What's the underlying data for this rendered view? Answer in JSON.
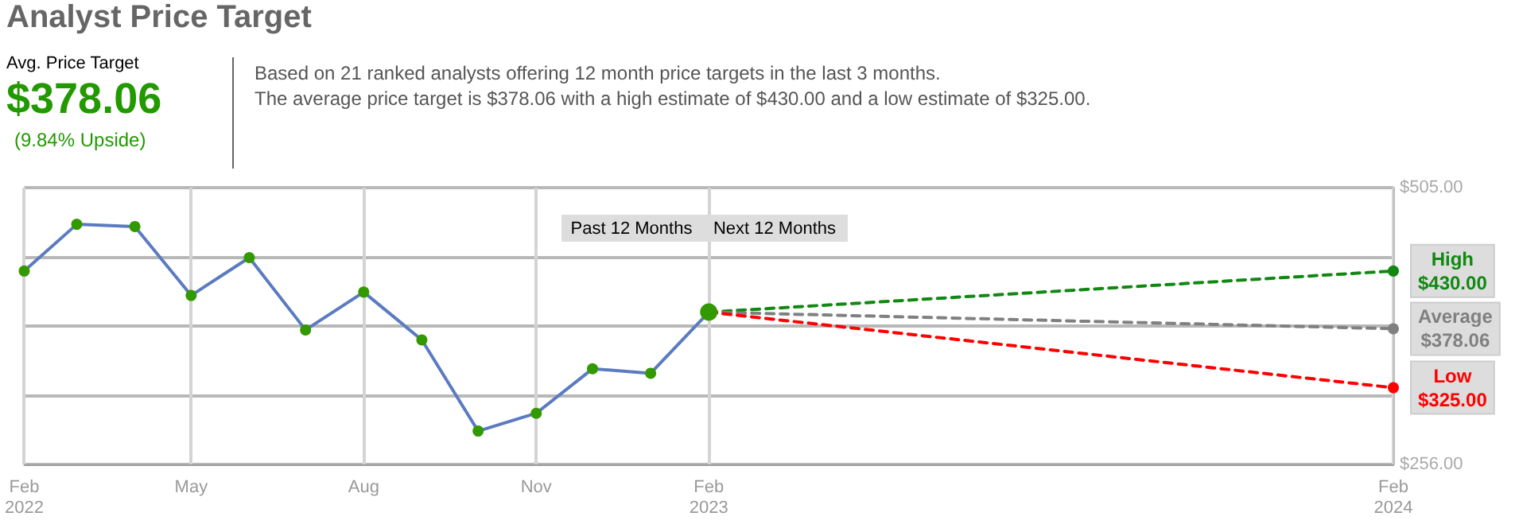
{
  "chart_data": {
    "type": "line",
    "title": "Analyst Price Target",
    "annotations": [
      "Avg. Price Target",
      "$378.06",
      "(9.84% Upside)",
      "Based on 21 ranked analysts offering 12 month price targets in the last 3 months.",
      "The average price target is $378.06 with a high estimate of $430.00 and a low estimate of $325.00.",
      "Past 12 Months",
      "Next 12 Months"
    ],
    "series": [
      {
        "color": "#5b7bc0",
        "colors": [
          "#339900",
          "#339900",
          "#339900",
          "#339900",
          "#339900",
          "#339900",
          "#339900",
          "#339900",
          "#339900",
          "#339900",
          "#339900",
          "#339900",
          "#339900"
        ],
        "line_style": "solid",
        "x": [
          "2022-02",
          "2022-03",
          "2022-04",
          "2022-05",
          "2022-06",
          "2022-07",
          "2022-08",
          "2022-09",
          "2022-10",
          "2022-11",
          "2022-12",
          "2023-01",
          "2023-02"
        ],
        "values": [
          430,
          472,
          470,
          408,
          442,
          377,
          411,
          368,
          286,
          302,
          342,
          338,
          393
        ]
      },
      {
        "name": "High",
        "color": "#118811",
        "line_style": "dashed",
        "x": [
          "2023-02",
          "2024-02"
        ],
        "values": [
          393,
          430
        ],
        "value_labels": [
          null,
          "$430.00"
        ]
      },
      {
        "name": "Average",
        "color": "#808080",
        "line_style": "dashed",
        "x": [
          "2023-02",
          "2024-02"
        ],
        "values": [
          393,
          378.06
        ],
        "value_labels": [
          null,
          "$378.06"
        ]
      },
      {
        "name": "Low",
        "color": "#ff0000",
        "line_style": "dashed",
        "x": [
          "2023-02",
          "2024-02"
        ],
        "values": [
          393,
          325
        ],
        "value_labels": [
          null,
          "$325.00"
        ]
      }
    ],
    "xlim": [
      "2022-02",
      "2024-02"
    ],
    "xticks": [
      {
        "value": "2022-02",
        "label": "Feb\n2022"
      },
      {
        "value": "2022-05",
        "label": "May"
      },
      {
        "value": "2022-08",
        "label": "Aug"
      },
      {
        "value": "2022-11",
        "label": "Nov"
      },
      {
        "value": "2023-02",
        "label": "Feb\n2023"
      },
      {
        "value": "2024-02",
        "label": "Feb\n2024"
      }
    ],
    "ylim": [
      256,
      505
    ],
    "yticks": [
      {
        "value": 256,
        "label": "$256.00"
      },
      {
        "value": 318.25,
        "label": null
      },
      {
        "value": 380.5,
        "label": null
      },
      {
        "value": 442.75,
        "label": null
      },
      {
        "value": 505,
        "label": "$505.00"
      }
    ],
    "grid": true,
    "marker": "circle",
    "legend": false
  }
}
